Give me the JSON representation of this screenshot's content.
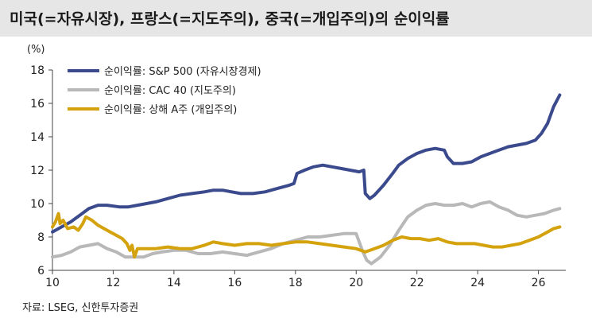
{
  "title": "미국(=자유시장), 프랑스(=지도주의), 중국(=개입주의)의 순이익률",
  "unit": "(%)",
  "source": "자료: LSEG, 신한투자증권",
  "chart_data": {
    "type": "line",
    "ylim": [
      6,
      18
    ],
    "y_ticks": [
      6,
      8,
      10,
      12,
      14,
      16,
      18
    ],
    "xlim": [
      2010,
      2026.9
    ],
    "x_ticks": [
      2010,
      2012,
      2014,
      2016,
      2018,
      2020,
      2022,
      2024,
      2026
    ],
    "x_tick_labels": [
      "10",
      "12",
      "14",
      "16",
      "18",
      "20",
      "22",
      "24",
      "26"
    ],
    "grid": false,
    "legend_position": "top-left",
    "series": [
      {
        "name": "순이익률: S&P 500 (자유시장경제)",
        "color": "#3b4a8c",
        "points": [
          [
            2010.0,
            8.3
          ],
          [
            2010.3,
            8.6
          ],
          [
            2010.6,
            8.9
          ],
          [
            2010.9,
            9.3
          ],
          [
            2011.2,
            9.7
          ],
          [
            2011.5,
            9.9
          ],
          [
            2011.8,
            9.9
          ],
          [
            2012.2,
            9.8
          ],
          [
            2012.5,
            9.8
          ],
          [
            2012.8,
            9.9
          ],
          [
            2013.1,
            10.0
          ],
          [
            2013.4,
            10.1
          ],
          [
            2013.8,
            10.3
          ],
          [
            2014.2,
            10.5
          ],
          [
            2014.6,
            10.6
          ],
          [
            2015.0,
            10.7
          ],
          [
            2015.3,
            10.8
          ],
          [
            2015.6,
            10.8
          ],
          [
            2015.9,
            10.7
          ],
          [
            2016.2,
            10.6
          ],
          [
            2016.6,
            10.6
          ],
          [
            2017.0,
            10.7
          ],
          [
            2017.4,
            10.9
          ],
          [
            2017.8,
            11.1
          ],
          [
            2017.95,
            11.2
          ],
          [
            2018.05,
            11.8
          ],
          [
            2018.3,
            12.0
          ],
          [
            2018.6,
            12.2
          ],
          [
            2018.9,
            12.3
          ],
          [
            2019.2,
            12.2
          ],
          [
            2019.5,
            12.1
          ],
          [
            2019.8,
            12.0
          ],
          [
            2020.1,
            11.9
          ],
          [
            2020.25,
            12.0
          ],
          [
            2020.3,
            10.6
          ],
          [
            2020.45,
            10.3
          ],
          [
            2020.6,
            10.5
          ],
          [
            2020.9,
            11.1
          ],
          [
            2021.2,
            11.8
          ],
          [
            2021.4,
            12.3
          ],
          [
            2021.7,
            12.7
          ],
          [
            2022.0,
            13.0
          ],
          [
            2022.3,
            13.2
          ],
          [
            2022.6,
            13.3
          ],
          [
            2022.9,
            13.2
          ],
          [
            2023.0,
            12.8
          ],
          [
            2023.2,
            12.4
          ],
          [
            2023.5,
            12.4
          ],
          [
            2023.8,
            12.5
          ],
          [
            2024.1,
            12.8
          ],
          [
            2024.4,
            13.0
          ],
          [
            2024.7,
            13.2
          ],
          [
            2025.0,
            13.4
          ],
          [
            2025.3,
            13.5
          ],
          [
            2025.6,
            13.6
          ],
          [
            2025.9,
            13.8
          ],
          [
            2026.1,
            14.2
          ],
          [
            2026.3,
            14.8
          ],
          [
            2026.5,
            15.8
          ],
          [
            2026.7,
            16.5
          ]
        ]
      },
      {
        "name": "순이익률: CAC 40 (지도주의)",
        "color": "#b8b8b8",
        "points": [
          [
            2010.0,
            6.8
          ],
          [
            2010.3,
            6.9
          ],
          [
            2010.6,
            7.1
          ],
          [
            2010.9,
            7.4
          ],
          [
            2011.2,
            7.5
          ],
          [
            2011.5,
            7.6
          ],
          [
            2011.8,
            7.3
          ],
          [
            2012.1,
            7.1
          ],
          [
            2012.4,
            6.8
          ],
          [
            2012.7,
            6.8
          ],
          [
            2013.0,
            6.8
          ],
          [
            2013.3,
            7.0
          ],
          [
            2013.6,
            7.1
          ],
          [
            2014.0,
            7.2
          ],
          [
            2014.4,
            7.2
          ],
          [
            2014.8,
            7.0
          ],
          [
            2015.2,
            7.0
          ],
          [
            2015.6,
            7.1
          ],
          [
            2016.0,
            7.0
          ],
          [
            2016.4,
            6.9
          ],
          [
            2016.8,
            7.1
          ],
          [
            2017.2,
            7.3
          ],
          [
            2017.6,
            7.6
          ],
          [
            2018.0,
            7.8
          ],
          [
            2018.4,
            8.0
          ],
          [
            2018.8,
            8.0
          ],
          [
            2019.2,
            8.1
          ],
          [
            2019.6,
            8.2
          ],
          [
            2020.0,
            8.2
          ],
          [
            2020.2,
            7.2
          ],
          [
            2020.35,
            6.6
          ],
          [
            2020.5,
            6.4
          ],
          [
            2020.8,
            6.8
          ],
          [
            2021.1,
            7.5
          ],
          [
            2021.4,
            8.4
          ],
          [
            2021.7,
            9.2
          ],
          [
            2022.0,
            9.6
          ],
          [
            2022.3,
            9.9
          ],
          [
            2022.6,
            10.0
          ],
          [
            2022.9,
            9.9
          ],
          [
            2023.2,
            9.9
          ],
          [
            2023.5,
            10.0
          ],
          [
            2023.8,
            9.8
          ],
          [
            2024.1,
            10.0
          ],
          [
            2024.4,
            10.1
          ],
          [
            2024.7,
            9.8
          ],
          [
            2025.0,
            9.6
          ],
          [
            2025.3,
            9.3
          ],
          [
            2025.6,
            9.2
          ],
          [
            2025.9,
            9.3
          ],
          [
            2026.2,
            9.4
          ],
          [
            2026.5,
            9.6
          ],
          [
            2026.7,
            9.7
          ]
        ]
      },
      {
        "name": "순이익률: 상해 A주 (개입주의)",
        "color": "#d4a20c",
        "points": [
          [
            2010.0,
            8.6
          ],
          [
            2010.1,
            8.9
          ],
          [
            2010.2,
            9.4
          ],
          [
            2010.25,
            8.8
          ],
          [
            2010.35,
            9.0
          ],
          [
            2010.5,
            8.5
          ],
          [
            2010.7,
            8.6
          ],
          [
            2010.85,
            8.4
          ],
          [
            2011.0,
            8.8
          ],
          [
            2011.1,
            9.2
          ],
          [
            2011.3,
            9.0
          ],
          [
            2011.5,
            8.7
          ],
          [
            2011.7,
            8.5
          ],
          [
            2011.9,
            8.3
          ],
          [
            2012.1,
            8.1
          ],
          [
            2012.3,
            7.9
          ],
          [
            2012.45,
            7.6
          ],
          [
            2012.55,
            7.2
          ],
          [
            2012.62,
            7.5
          ],
          [
            2012.7,
            6.8
          ],
          [
            2012.8,
            7.3
          ],
          [
            2013.0,
            7.3
          ],
          [
            2013.4,
            7.3
          ],
          [
            2013.8,
            7.4
          ],
          [
            2014.2,
            7.3
          ],
          [
            2014.6,
            7.3
          ],
          [
            2015.0,
            7.5
          ],
          [
            2015.3,
            7.7
          ],
          [
            2015.6,
            7.6
          ],
          [
            2016.0,
            7.5
          ],
          [
            2016.4,
            7.6
          ],
          [
            2016.8,
            7.6
          ],
          [
            2017.2,
            7.5
          ],
          [
            2017.6,
            7.6
          ],
          [
            2018.0,
            7.7
          ],
          [
            2018.4,
            7.7
          ],
          [
            2018.8,
            7.6
          ],
          [
            2019.2,
            7.5
          ],
          [
            2019.6,
            7.4
          ],
          [
            2020.0,
            7.3
          ],
          [
            2020.3,
            7.1
          ],
          [
            2020.6,
            7.3
          ],
          [
            2020.9,
            7.5
          ],
          [
            2021.2,
            7.8
          ],
          [
            2021.5,
            8.0
          ],
          [
            2021.8,
            7.9
          ],
          [
            2022.1,
            7.9
          ],
          [
            2022.4,
            7.8
          ],
          [
            2022.7,
            7.9
          ],
          [
            2023.0,
            7.7
          ],
          [
            2023.3,
            7.6
          ],
          [
            2023.6,
            7.6
          ],
          [
            2023.9,
            7.6
          ],
          [
            2024.2,
            7.5
          ],
          [
            2024.5,
            7.4
          ],
          [
            2024.8,
            7.4
          ],
          [
            2025.1,
            7.5
          ],
          [
            2025.4,
            7.6
          ],
          [
            2025.7,
            7.8
          ],
          [
            2026.0,
            8.0
          ],
          [
            2026.3,
            8.3
          ],
          [
            2026.5,
            8.5
          ],
          [
            2026.7,
            8.6
          ]
        ]
      }
    ]
  }
}
